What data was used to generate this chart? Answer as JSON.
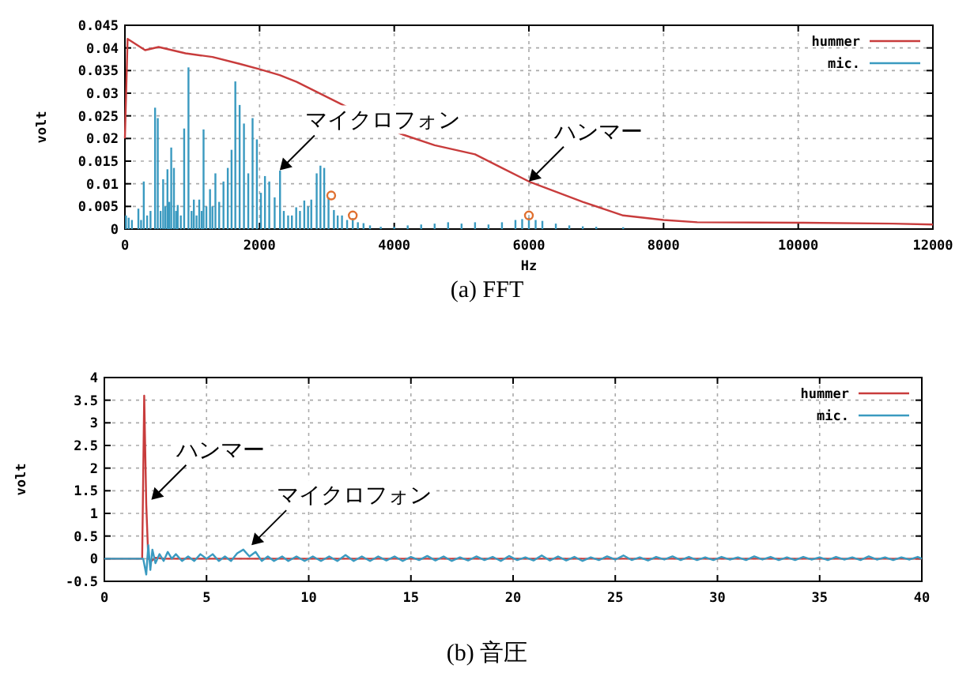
{
  "chart_data": [
    {
      "type": "line",
      "title": "(a) FFT",
      "xlabel": "Hz",
      "ylabel": "volt",
      "xlim": [
        0,
        12000
      ],
      "xticks": [
        0,
        2000,
        4000,
        6000,
        8000,
        10000,
        12000
      ],
      "ylim": [
        0,
        0.045
      ],
      "yticks": [
        0,
        0.005,
        0.01,
        0.015,
        0.02,
        0.025,
        0.03,
        0.035,
        0.04,
        0.045
      ],
      "grid": true,
      "legend": "top right",
      "annotations": [
        {
          "text": "マイクロフォン",
          "x": 2300,
          "y": 0.013
        },
        {
          "text": "ハンマー",
          "x": 6000,
          "y": 0.0105
        }
      ],
      "series": [
        {
          "name": "hummer",
          "color": "#c83c3c",
          "x": [
            0,
            40,
            300,
            500,
            900,
            1300,
            1700,
            2000,
            2300,
            2550,
            4100,
            4600,
            5200,
            5600,
            6000,
            6800,
            7400,
            8000,
            8500,
            10000,
            11400,
            12000
          ],
          "values": [
            0.02,
            0.042,
            0.0395,
            0.0402,
            0.0388,
            0.038,
            0.0365,
            0.0353,
            0.034,
            0.0325,
            0.021,
            0.0185,
            0.0165,
            0.0135,
            0.0105,
            0.006,
            0.003,
            0.002,
            0.0015,
            0.0014,
            0.0012,
            0.001
          ]
        },
        {
          "name": "mic.",
          "color": "#3a9ac0",
          "type": "bar",
          "x": [
            16,
            56,
            104,
            200,
            240,
            280,
            330,
            380,
            448,
            488,
            530,
            568,
            600,
            632,
            660,
            688,
            728,
            760,
            784,
            830,
            880,
            944,
            990,
            1024,
            1064,
            1104,
            1140,
            1168,
            1210,
            1264,
            1300,
            1344,
            1400,
            1464,
            1528,
            1584,
            1640,
            1704,
            1768,
            1832,
            1896,
            1960,
            2020,
            2080,
            2144,
            2224,
            2304,
            2360,
            2424,
            2480,
            2544,
            2600,
            2664,
            2720,
            2768,
            2848,
            2904,
            2960,
            3024,
            3104,
            3160,
            3224,
            3300,
            3384,
            3460,
            3544,
            3640,
            3800,
            4000,
            4200,
            4400,
            4600,
            4800,
            5000,
            5200,
            5400,
            5600,
            5800,
            5900,
            6000,
            6100,
            6200,
            6400,
            6600,
            6800,
            7000,
            7400
          ],
          "values": [
            0.003,
            0.0025,
            0.002,
            0.0045,
            0.002,
            0.0105,
            0.003,
            0.004,
            0.0268,
            0.0245,
            0.004,
            0.011,
            0.005,
            0.0132,
            0.006,
            0.018,
            0.0135,
            0.004,
            0.0053,
            0.003,
            0.0222,
            0.0357,
            0.004,
            0.0065,
            0.003,
            0.0065,
            0.004,
            0.022,
            0.005,
            0.0088,
            0.005,
            0.0123,
            0.006,
            0.0105,
            0.0135,
            0.0175,
            0.0326,
            0.0274,
            0.0233,
            0.0123,
            0.0245,
            0.0198,
            0.008,
            0.0117,
            0.0105,
            0.007,
            0.0129,
            0.004,
            0.003,
            0.003,
            0.0048,
            0.004,
            0.0063,
            0.005,
            0.0065,
            0.0123,
            0.014,
            0.0135,
            0.007,
            0.0042,
            0.003,
            0.003,
            0.002,
            0.0024,
            0.0015,
            0.0013,
            0.0008,
            0.0005,
            0.0005,
            0.0008,
            0.001,
            0.0012,
            0.0015,
            0.0012,
            0.0015,
            0.001,
            0.0015,
            0.002,
            0.0022,
            0.0025,
            0.002,
            0.0018,
            0.0012,
            0.0008,
            0.0006,
            0.0005,
            0.0004
          ]
        },
        {
          "color": "#e07030",
          "type": "scatter",
          "marker": "circle",
          "x": [
            3064,
            3384,
            6000
          ],
          "values": [
            0.0074,
            0.003,
            0.003
          ]
        }
      ]
    },
    {
      "type": "line",
      "title": "(b) 音圧",
      "ylabel": "volt",
      "xlim": [
        0,
        40
      ],
      "xticks": [
        0,
        5,
        10,
        15,
        20,
        25,
        30,
        35,
        40
      ],
      "ylim": [
        -0.5,
        4
      ],
      "yticks": [
        -0.5,
        0,
        0.5,
        1,
        1.5,
        2,
        2.5,
        3,
        3.5,
        4
      ],
      "grid": true,
      "legend": "top right",
      "annotations": [
        {
          "text": "ハンマー",
          "x": 2.3,
          "y": 1.3
        },
        {
          "text": "マイクロフォン",
          "x": 7.2,
          "y": 0.3
        }
      ],
      "series": [
        {
          "name": "hummer",
          "color": "#c83c3c",
          "x": [
            0,
            1.85,
            1.95,
            2.05,
            2.15,
            2.3,
            2.5,
            3,
            40
          ],
          "values": [
            0,
            0,
            3.6,
            1.2,
            0,
            -0.05,
            0.02,
            0,
            0
          ]
        },
        {
          "name": "mic.",
          "color": "#3a9ac0",
          "x": [
            0,
            1.9,
            2.05,
            2.15,
            2.25,
            2.35,
            2.5,
            2.7,
            2.9,
            3.1,
            3.3,
            3.5,
            3.8,
            4.1,
            4.4,
            4.7,
            5,
            5.3,
            5.6,
            5.9,
            6.2,
            6.5,
            6.8,
            7.1,
            7.4,
            7.7,
            8,
            8.3,
            8.7,
            9,
            9.4,
            9.8,
            10.2,
            10.6,
            11,
            11.4,
            11.8,
            12.2,
            12.6,
            13,
            13.4,
            13.8,
            14.2,
            14.6,
            15,
            15.4,
            15.8,
            16.2,
            16.6,
            17,
            17.4,
            17.8,
            18.2,
            18.6,
            19,
            19.4,
            19.8,
            20.2,
            20.6,
            21,
            21.4,
            21.8,
            22.2,
            22.6,
            23,
            23.4,
            23.8,
            24.2,
            24.6,
            25,
            25.4,
            25.8,
            26.2,
            26.6,
            27,
            27.4,
            27.8,
            28.2,
            28.6,
            29,
            29.4,
            29.8,
            30.2,
            30.6,
            31,
            31.4,
            31.8,
            32.2,
            32.6,
            33,
            33.4,
            33.8,
            34.2,
            34.6,
            35,
            35.4,
            35.8,
            36.2,
            36.6,
            37,
            37.4,
            37.8,
            38.2,
            38.6,
            39,
            39.4,
            39.8,
            40
          ],
          "values": [
            0,
            0,
            -0.35,
            0.3,
            -0.25,
            0.2,
            -0.1,
            0.1,
            -0.05,
            0.15,
            0,
            0.1,
            -0.05,
            0.05,
            -0.05,
            0.1,
            0,
            0.1,
            -0.05,
            0.05,
            -0.05,
            0.12,
            0.2,
            0.05,
            0.15,
            -0.05,
            0.05,
            -0.05,
            0.05,
            -0.05,
            0.05,
            -0.05,
            0.05,
            -0.05,
            0.05,
            -0.05,
            0.08,
            -0.05,
            0.05,
            -0.05,
            0.05,
            -0.04,
            0.05,
            -0.05,
            0.04,
            -0.03,
            0.06,
            -0.04,
            0.05,
            -0.05,
            0.03,
            -0.04,
            0.05,
            -0.03,
            0.04,
            -0.05,
            0.06,
            -0.03,
            0.03,
            -0.04,
            0.07,
            -0.04,
            0.05,
            -0.04,
            0.04,
            -0.05,
            0.03,
            -0.03,
            0.05,
            -0.02,
            0.07,
            -0.03,
            0.03,
            -0.04,
            0.04,
            -0.02,
            0.05,
            -0.03,
            0.04,
            -0.03,
            0.03,
            -0.03,
            0.04,
            -0.02,
            0.03,
            -0.03,
            0.05,
            -0.02,
            0.04,
            -0.03,
            0.03,
            -0.03,
            0.04,
            -0.02,
            0.03,
            -0.03,
            0.04,
            -0.02,
            0.03,
            -0.03,
            0.05,
            -0.02,
            0.03,
            -0.03,
            0.03,
            -0.02,
            0.04,
            0
          ]
        }
      ]
    }
  ]
}
